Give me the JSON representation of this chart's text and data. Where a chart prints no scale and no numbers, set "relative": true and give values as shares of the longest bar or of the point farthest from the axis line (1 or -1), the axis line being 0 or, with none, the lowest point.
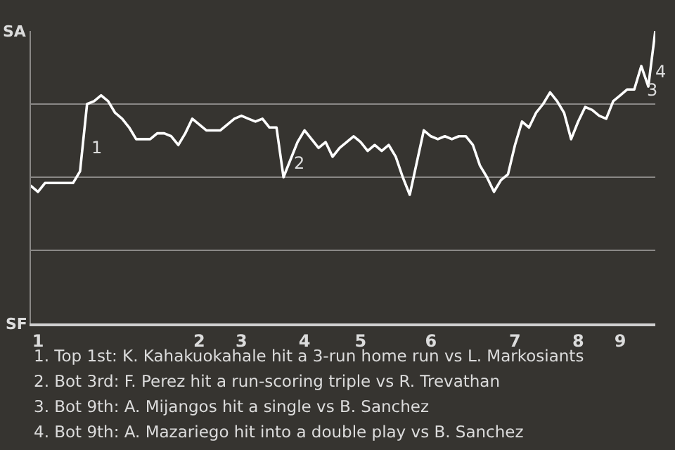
{
  "chart_data": {
    "type": "line",
    "relative": true,
    "categories": [
      null,
      "1",
      null,
      null,
      null,
      null,
      null,
      null,
      null,
      null,
      null,
      null,
      null,
      null,
      null,
      null,
      null,
      null,
      null,
      null,
      null,
      null,
      null,
      null,
      "2",
      null,
      null,
      null,
      null,
      null,
      "3",
      null,
      null,
      null,
      null,
      null,
      null,
      null,
      null,
      "4",
      null,
      null,
      null,
      null,
      null,
      null,
      null,
      "5",
      null,
      null,
      null,
      null,
      null,
      null,
      null,
      null,
      null,
      "6",
      null,
      null,
      null,
      null,
      null,
      null,
      null,
      null,
      null,
      null,
      null,
      "7",
      null,
      null,
      null,
      null,
      null,
      null,
      null,
      null,
      "8",
      null,
      null,
      null,
      null,
      null,
      "9",
      null,
      null,
      null,
      null,
      null
    ],
    "series": [
      {
        "color": "#ffffff",
        "values": [
          0.47,
          0.45,
          0.48,
          0.48,
          0.48,
          0.48,
          0.48,
          0.52,
          0.75,
          0.76,
          0.78,
          0.76,
          0.72,
          0.7,
          0.67,
          0.63,
          0.63,
          0.63,
          0.65,
          0.65,
          0.64,
          0.61,
          0.65,
          0.7,
          0.68,
          0.66,
          0.66,
          0.66,
          0.68,
          0.7,
          0.71,
          0.7,
          0.69,
          0.7,
          0.67,
          0.67,
          0.5,
          0.56,
          0.62,
          0.66,
          0.63,
          0.6,
          0.62,
          0.57,
          0.6,
          0.62,
          0.64,
          0.62,
          0.59,
          0.61,
          0.59,
          0.61,
          0.57,
          0.5,
          0.44,
          0.55,
          0.66,
          0.64,
          0.63,
          0.64,
          0.63,
          0.64,
          0.64,
          0.61,
          0.54,
          0.5,
          0.45,
          0.49,
          0.51,
          0.61,
          0.69,
          0.67,
          0.72,
          0.75,
          0.79,
          0.76,
          0.72,
          0.63,
          0.69,
          0.74,
          0.73,
          0.71,
          0.7,
          0.76,
          0.78,
          0.8,
          0.8,
          0.88,
          0.81,
          1.0
        ]
      }
    ],
    "annotations": [
      "SA",
      "SF",
      "1",
      "2",
      "3",
      "4",
      "1. Top 1st: K. Kahakuokahale hit a 3-run home run vs L. Markosiants",
      "2. Bot 3rd: F. Perez hit a run-scoring triple vs R. Trevathan",
      "3. Bot 9th: A. Mijangos hit a single vs B. Sanchez",
      "4. Bot 9th: A. Mazariego hit into a double play vs B. Sanchez"
    ],
    "grid": "y",
    "marker": "none",
    "line_style": "solid"
  }
}
